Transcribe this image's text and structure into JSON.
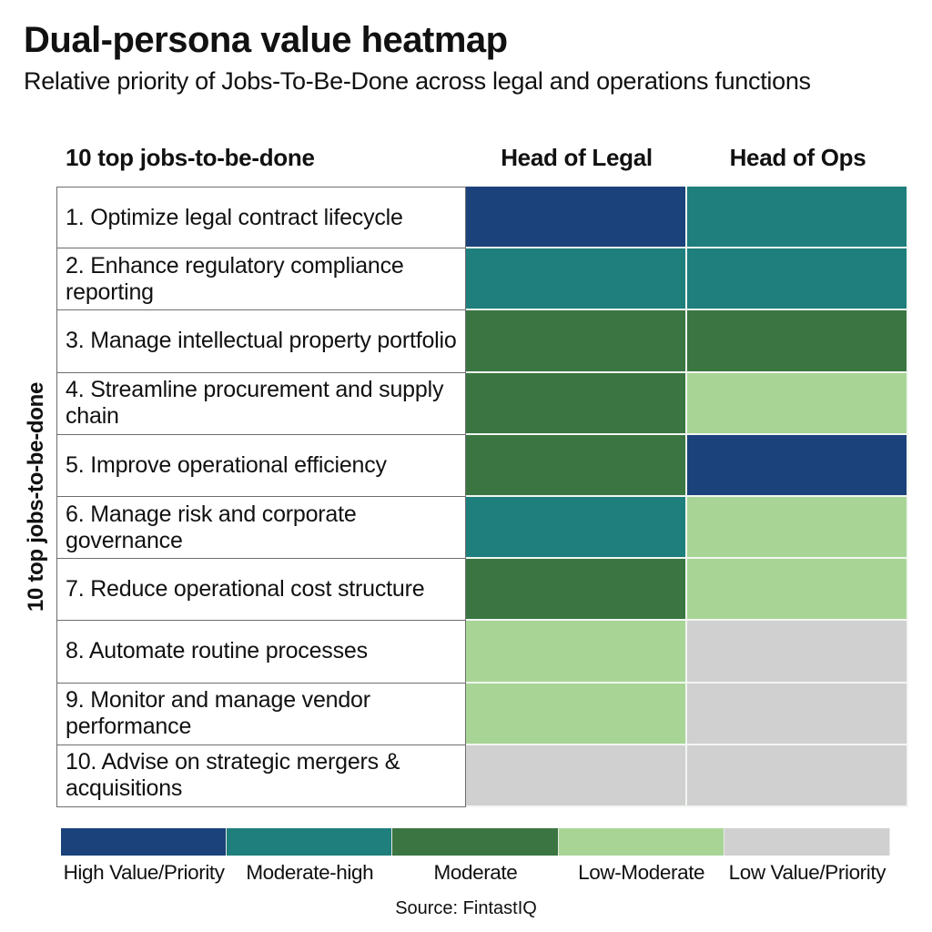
{
  "header": {
    "title": "Dual-persona value heatmap",
    "subtitle": "Relative priority of Jobs-To-Be-Done across legal and operations functions"
  },
  "table": {
    "row_header": "10 top jobs-to-be-done",
    "y_axis_label": "10 top jobs-to-be-done",
    "columns": [
      "Head of Legal",
      "Head of Ops"
    ]
  },
  "legend": {
    "items": [
      {
        "label": "High Value/Priority",
        "color": "#1b427a"
      },
      {
        "label": "Moderate-high",
        "color": "#1e7f7c"
      },
      {
        "label": "Moderate",
        "color": "#3b7642"
      },
      {
        "label": "Low-Moderate",
        "color": "#a8d596"
      },
      {
        "label": "Low Value/Priority",
        "color": "#d0d0d0"
      }
    ]
  },
  "source": "Source: FintastIQ",
  "chart_data": {
    "type": "heatmap",
    "title": "Dual-persona value heatmap",
    "subtitle": "Relative priority of Jobs-To-Be-Done across legal and operations functions",
    "xlabel": "",
    "ylabel": "10 top jobs-to-be-done",
    "x": [
      "Head of Legal",
      "Head of Ops"
    ],
    "y": [
      "1. Optimize legal contract lifecycle",
      "2. Enhance regulatory compliance reporting",
      "3. Manage intellectual property portfolio",
      "4. Streamline procurement and supply chain",
      "5. Improve operational efficiency",
      "6. Manage risk and corporate governance",
      "7. Reduce operational cost structure",
      "8. Automate routine processes",
      "9. Monitor and manage vendor performance",
      "10. Advise on strategic mergers & acquisitions"
    ],
    "scale": [
      "High Value/Priority",
      "Moderate-high",
      "Moderate",
      "Low-Moderate",
      "Low Value/Priority"
    ],
    "scale_colors": [
      "#1b427a",
      "#1e7f7c",
      "#3b7642",
      "#a8d596",
      "#d0d0d0"
    ],
    "values": [
      [
        "High Value/Priority",
        "Moderate-high"
      ],
      [
        "Moderate-high",
        "Moderate-high"
      ],
      [
        "Moderate",
        "Moderate"
      ],
      [
        "Moderate",
        "Low-Moderate"
      ],
      [
        "Moderate",
        "High Value/Priority"
      ],
      [
        "Moderate-high",
        "Low-Moderate"
      ],
      [
        "Moderate",
        "Low-Moderate"
      ],
      [
        "Low-Moderate",
        "Low Value/Priority"
      ],
      [
        "Low-Moderate",
        "Low Value/Priority"
      ],
      [
        "Low Value/Priority",
        "Low Value/Priority"
      ]
    ],
    "values_numeric_1high_5low": [
      [
        1,
        2
      ],
      [
        2,
        2
      ],
      [
        3,
        3
      ],
      [
        3,
        4
      ],
      [
        3,
        1
      ],
      [
        2,
        4
      ],
      [
        3,
        4
      ],
      [
        4,
        5
      ],
      [
        4,
        5
      ],
      [
        5,
        5
      ]
    ],
    "source": "Source: FintastIQ"
  }
}
